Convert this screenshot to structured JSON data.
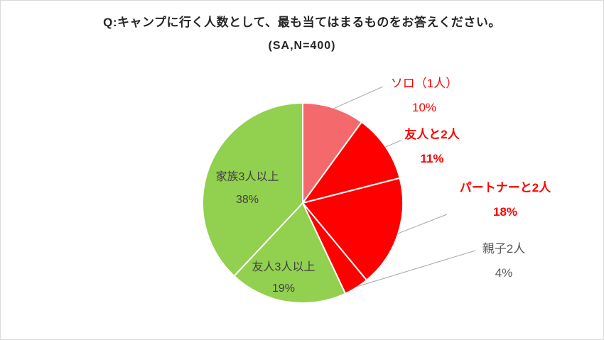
{
  "chart_data": {
    "type": "pie",
    "title": "Q:キャンプに行く人数として、最も当てはまるものをお答えください。",
    "subtitle": "(SA,N=400)",
    "unit": "%",
    "start_angle_deg": 0,
    "direction": "clockwise",
    "legend_position": "none",
    "categories": [
      "ソロ（1人）",
      "友人と2人",
      "パートナーと2人",
      "親子2人",
      "友人3人以上",
      "家族3人以上"
    ],
    "values": [
      10,
      11,
      18,
      4,
      19,
      38
    ],
    "slices": [
      {
        "label": "ソロ（1人）",
        "value": 10,
        "pct": "10%",
        "color": "#F4696B",
        "label_color": "#FF0000",
        "label_placement": "outside",
        "bold": false
      },
      {
        "label": "友人と2人",
        "value": 11,
        "pct": "11%",
        "color": "#FF0000",
        "label_color": "#FF0000",
        "label_placement": "outside",
        "bold": true
      },
      {
        "label": "パートナーと2人",
        "value": 18,
        "pct": "18%",
        "color": "#FF0000",
        "label_color": "#FF0000",
        "label_placement": "outside",
        "bold": true
      },
      {
        "label": "親子2人",
        "value": 4,
        "pct": "4%",
        "color": "#FF0000",
        "label_color": "#595959",
        "label_placement": "outside",
        "bold": false
      },
      {
        "label": "友人3人以上",
        "value": 19,
        "pct": "19%",
        "color": "#92D050",
        "label_color": "#404040",
        "label_placement": "inside",
        "bold": false
      },
      {
        "label": "家族3人以上",
        "value": 38,
        "pct": "38%",
        "color": "#92D050",
        "label_color": "#404040",
        "label_placement": "inside",
        "bold": false
      }
    ],
    "style": {
      "slice_border_color": "#FFFFFF",
      "leader_line_color": "#A6A6A6",
      "background": "#FFFFFF"
    }
  }
}
